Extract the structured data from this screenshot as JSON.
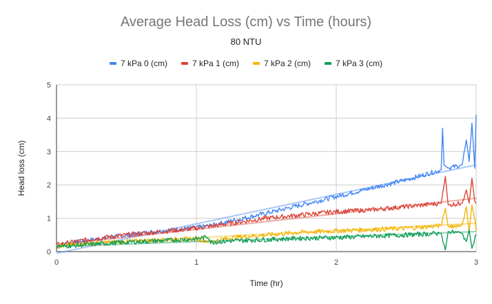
{
  "chart_data": {
    "type": "line",
    "title": "Average Head Loss (cm) vs Time (hours)",
    "subtitle": "80 NTU",
    "xlabel": "Time (hr)",
    "ylabel": "Head loss (cm)",
    "xlim": [
      0,
      3
    ],
    "ylim": [
      0,
      5
    ],
    "xticks": [
      "0",
      "1",
      "2",
      "3"
    ],
    "yticks": [
      "0",
      "1",
      "2",
      "3",
      "4",
      "5"
    ],
    "grid": true,
    "legend_position": "top",
    "series": [
      {
        "name": "7 kPa 0 (cm)",
        "color": "#4285f4",
        "x": [
          0,
          0.25,
          0.5,
          0.75,
          1.0,
          1.1,
          1.25,
          1.5,
          1.75,
          2.0,
          2.25,
          2.5,
          2.75,
          2.76,
          2.77,
          2.8,
          2.9,
          2.93,
          2.95,
          2.97,
          2.99,
          3.0
        ],
        "y": [
          0.2,
          0.35,
          0.5,
          0.62,
          0.72,
          0.78,
          0.92,
          1.15,
          1.4,
          1.65,
          1.9,
          2.15,
          2.45,
          3.7,
          2.6,
          2.5,
          2.6,
          3.35,
          2.7,
          3.85,
          2.5,
          4.1
        ],
        "trend": [
          [
            0,
            -0.05
          ],
          [
            3,
            2.6
          ]
        ]
      },
      {
        "name": "7 kPa 1 (cm)",
        "color": "#db4437",
        "x": [
          0,
          0.25,
          0.5,
          0.75,
          1.0,
          1.25,
          1.5,
          1.75,
          2.0,
          2.25,
          2.5,
          2.75,
          2.78,
          2.8,
          2.9,
          2.93,
          2.95,
          2.97,
          2.99,
          3.0
        ],
        "y": [
          0.2,
          0.38,
          0.5,
          0.6,
          0.7,
          0.85,
          1.0,
          1.1,
          1.2,
          1.25,
          1.35,
          1.45,
          2.25,
          1.4,
          1.45,
          1.85,
          1.45,
          2.2,
          1.5,
          1.45
        ],
        "trend": [
          [
            0,
            0.2
          ],
          [
            3,
            1.6
          ]
        ]
      },
      {
        "name": "7 kPa 2 (cm)",
        "color": "#f4b400",
        "x": [
          0,
          0.25,
          0.5,
          0.75,
          1.0,
          1.1,
          1.25,
          1.5,
          1.75,
          2.0,
          2.25,
          2.5,
          2.75,
          2.78,
          2.8,
          2.9,
          2.93,
          2.95,
          2.97,
          3.0
        ],
        "y": [
          0.15,
          0.25,
          0.3,
          0.35,
          0.38,
          0.3,
          0.42,
          0.5,
          0.58,
          0.62,
          0.66,
          0.7,
          0.78,
          1.3,
          0.75,
          0.8,
          1.35,
          0.6,
          1.4,
          0.7
        ],
        "trend": [
          [
            0,
            0.2
          ],
          [
            3,
            0.85
          ]
        ]
      },
      {
        "name": "7 kPa 3 (cm)",
        "color": "#0f9d58",
        "x": [
          0,
          0.25,
          0.5,
          0.75,
          1.0,
          1.09,
          1.1,
          1.25,
          1.5,
          1.75,
          2.0,
          2.25,
          2.5,
          2.75,
          2.78,
          2.8,
          2.9,
          2.93,
          2.95,
          2.97,
          3.0
        ],
        "y": [
          0.15,
          0.22,
          0.28,
          0.33,
          0.38,
          0.45,
          0.28,
          0.32,
          0.36,
          0.4,
          0.42,
          0.46,
          0.5,
          0.55,
          0.05,
          0.6,
          0.55,
          0.3,
          0.65,
          0.1,
          0.5
        ],
        "trend": [
          [
            0,
            0.15
          ],
          [
            3,
            0.6
          ]
        ]
      }
    ]
  }
}
